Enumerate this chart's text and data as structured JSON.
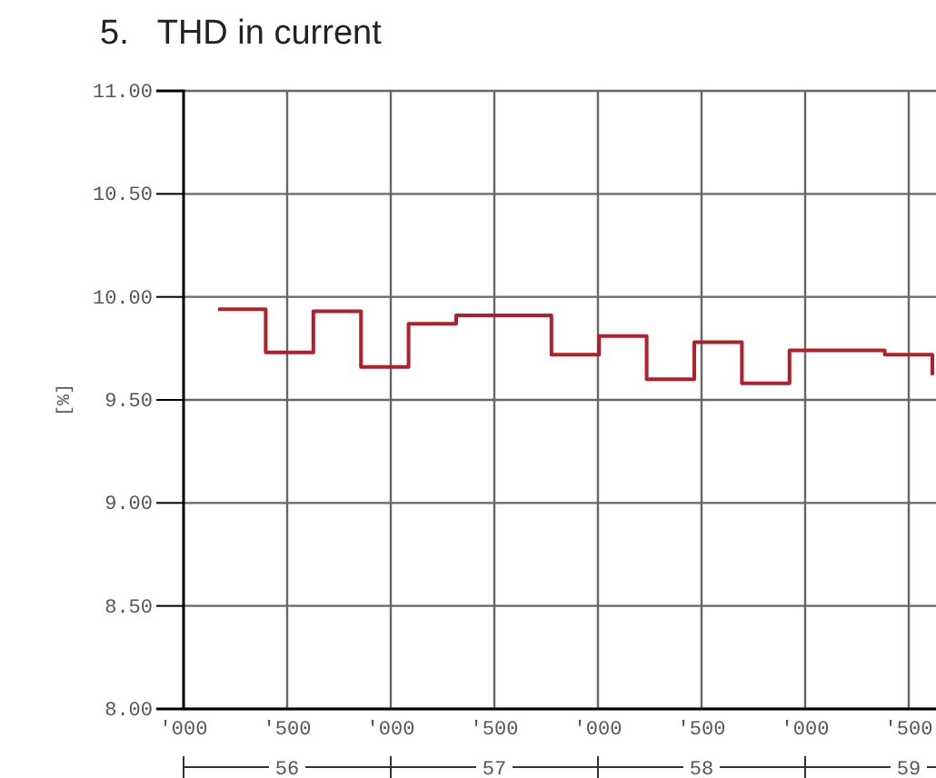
{
  "chart_data": {
    "type": "step",
    "title": "5.   THD in current",
    "ylabel": "[%]",
    "categories": [
      null,
      null,
      null,
      null,
      null,
      null,
      null,
      null,
      null,
      null,
      null,
      null,
      null,
      null,
      null,
      null
    ],
    "series": [
      {
        "color": "#b0202a",
        "values": [
          9.94,
          9.73,
          9.93,
          9.66,
          9.87,
          9.91,
          9.91,
          9.72,
          9.81,
          9.6,
          9.78,
          9.58,
          9.74,
          9.74,
          9.72,
          9.62
        ]
      }
    ],
    "annotations": [
      "'000",
      "'500",
      "'000",
      "'500",
      "'000",
      "'500",
      "'000",
      "'500",
      "56",
      "57",
      "58",
      "59"
    ],
    "ylim": [
      8,
      11
    ],
    "yticks": [
      {
        "value": 8,
        "label": "8.00"
      },
      {
        "value": 8.5,
        "label": "8.50"
      },
      {
        "value": 9,
        "label": "9.00"
      },
      {
        "value": 9.5,
        "label": "9.50"
      },
      {
        "value": 10,
        "label": "10.00"
      },
      {
        "value": 10.5,
        "label": "10.50"
      },
      {
        "value": 11,
        "label": "11.00"
      }
    ],
    "grid": true,
    "line_style": "solid",
    "marker": "none"
  }
}
